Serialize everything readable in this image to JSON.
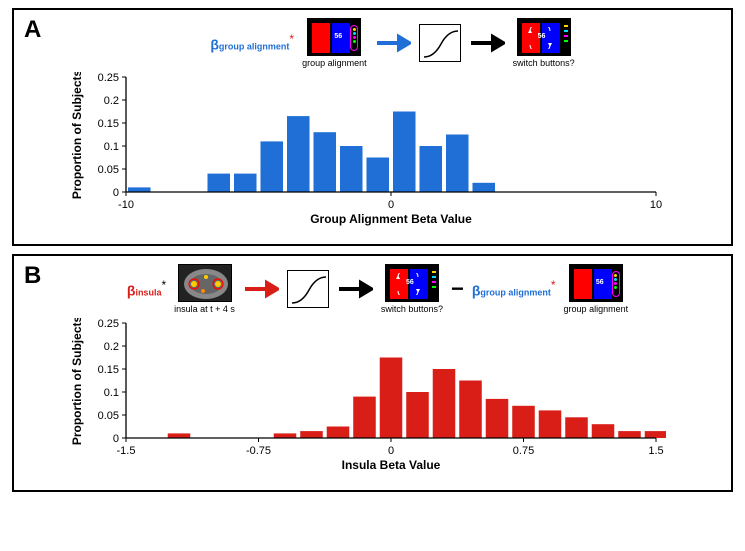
{
  "panelA": {
    "label": "A",
    "beta_label": "β",
    "beta_sub": "group alignment",
    "beta_color": "#1f6fd6",
    "star_color": "#d91e18",
    "thumb1_caption": "group alignment",
    "thumb3_caption": "switch buttons?",
    "arrow1_color": "#1f6fd6",
    "arrow2_color": "#000000",
    "chart": {
      "type": "bar",
      "ylabel": "Proportion of Subjects",
      "xlabel": "Group Alignment Beta Value",
      "ylim": [
        0,
        0.25
      ],
      "ytick_step": 0.05,
      "xlim": [
        -10,
        10
      ],
      "xticks": [
        -10,
        0,
        10
      ],
      "bar_color": "#1f6fd6",
      "categories": [
        -9.5,
        -8.5,
        -7.5,
        -6.5,
        -5.5,
        -4.5,
        -3.5,
        -2.5,
        -1.5,
        -0.5,
        0.5,
        1.5,
        2.5,
        3.5
      ],
      "values": [
        0.01,
        0,
        0,
        0.04,
        0.04,
        0.11,
        0.165,
        0.13,
        0.1,
        0.075,
        0.175,
        0.1,
        0.125,
        0.02
      ],
      "background": "#ffffff",
      "axis_color": "#000000",
      "label_fontsize": 12
    },
    "thumb_num": "56"
  },
  "panelB": {
    "label": "B",
    "beta1_label": "β",
    "beta1_sub": "insula",
    "beta1_color": "#d91e18",
    "star_color": "#000000",
    "thumb1_caption": "insula at t + 4 s",
    "thumb3_caption": "switch buttons?",
    "thumb4_caption": "group alignment",
    "beta2_label": "β",
    "beta2_sub": "group alignment",
    "beta2_color": "#1f6fd6",
    "beta2_star_color": "#d91e18",
    "arrow1_color": "#d91e18",
    "arrow2_color": "#000000",
    "chart": {
      "type": "bar",
      "ylabel": "Proportion of Subjects",
      "xlabel": "Insula Beta Value",
      "ylim": [
        0,
        0.25
      ],
      "ytick_step": 0.05,
      "xlim": [
        -1.5,
        1.5
      ],
      "xticks": [
        -1.5,
        -0.75,
        0,
        0.75,
        1.5
      ],
      "bar_color": "#d91e18",
      "categories": [
        -1.2,
        -0.6,
        -0.45,
        -0.3,
        -0.15,
        0,
        0.15,
        0.3,
        0.45,
        0.6,
        0.75,
        0.9,
        1.05,
        1.2,
        1.35,
        1.5
      ],
      "values": [
        0.01,
        0.01,
        0.015,
        0.025,
        0.09,
        0.175,
        0.1,
        0.15,
        0.125,
        0.085,
        0.07,
        0.06,
        0.045,
        0.03,
        0.015,
        0.015
      ],
      "background": "#ffffff",
      "axis_color": "#000000",
      "label_fontsize": 12
    },
    "thumb_num": "56"
  }
}
